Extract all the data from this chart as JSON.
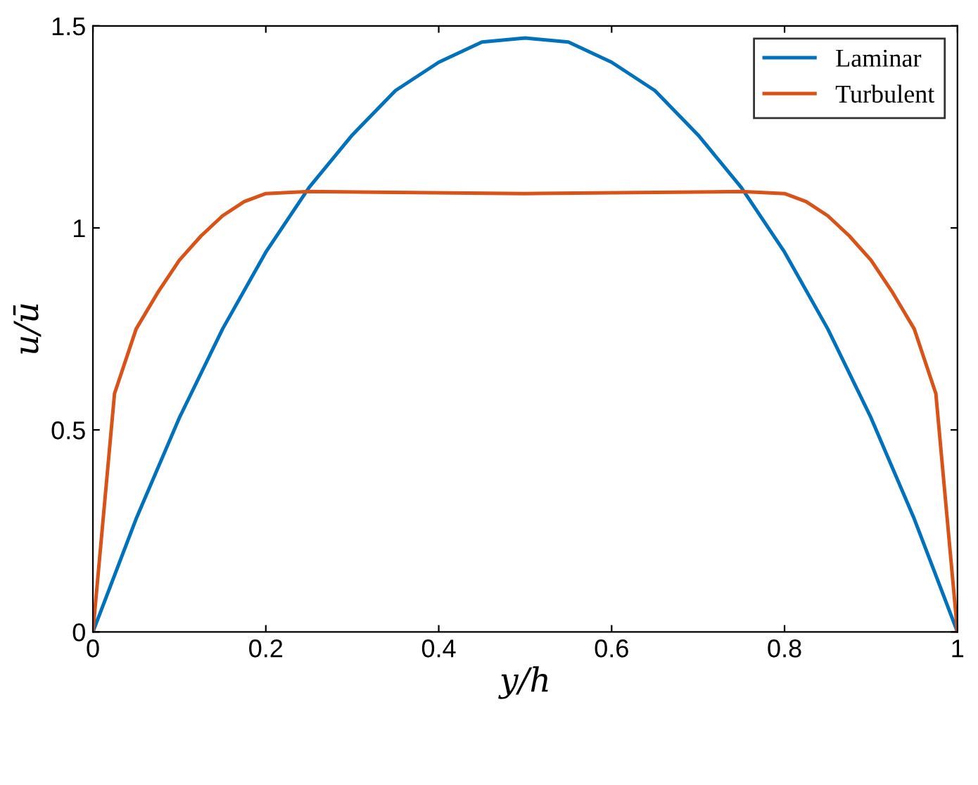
{
  "chart_data": {
    "type": "line",
    "xlabel": "y/h",
    "ylabel": "u/ū",
    "xlim": [
      0,
      1
    ],
    "ylim": [
      0,
      1.5
    ],
    "xticks": [
      0,
      0.2,
      0.4,
      0.6,
      0.8,
      1
    ],
    "yticks": [
      0,
      0.5,
      1,
      1.5
    ],
    "grid": false,
    "legend": "top right",
    "marker": "none",
    "line_style": "solid",
    "series": [
      {
        "name": "Laminar",
        "color": "#0072bd",
        "x": [
          0,
          0.05,
          0.1,
          0.15,
          0.2,
          0.25,
          0.3,
          0.35,
          0.4,
          0.45,
          0.5,
          0.55,
          0.6,
          0.65,
          0.7,
          0.75,
          0.8,
          0.85,
          0.9,
          0.95,
          1
        ],
        "values": [
          0,
          0.28,
          0.53,
          0.75,
          0.94,
          1.1,
          1.23,
          1.34,
          1.41,
          1.46,
          1.47,
          1.46,
          1.41,
          1.34,
          1.23,
          1.1,
          0.94,
          0.75,
          0.53,
          0.28,
          0
        ]
      },
      {
        "name": "Turbulent",
        "color": "#d95319",
        "x": [
          0,
          0.025,
          0.05,
          0.075,
          0.1,
          0.125,
          0.15,
          0.175,
          0.2,
          0.25,
          0.5,
          0.75,
          0.8,
          0.825,
          0.85,
          0.875,
          0.9,
          0.925,
          0.95,
          0.975,
          1
        ],
        "values": [
          0,
          0.59,
          0.75,
          0.84,
          0.92,
          0.98,
          1.03,
          1.065,
          1.085,
          1.09,
          1.085,
          1.09,
          1.085,
          1.065,
          1.03,
          0.98,
          0.92,
          0.84,
          0.75,
          0.59,
          0
        ]
      }
    ]
  }
}
